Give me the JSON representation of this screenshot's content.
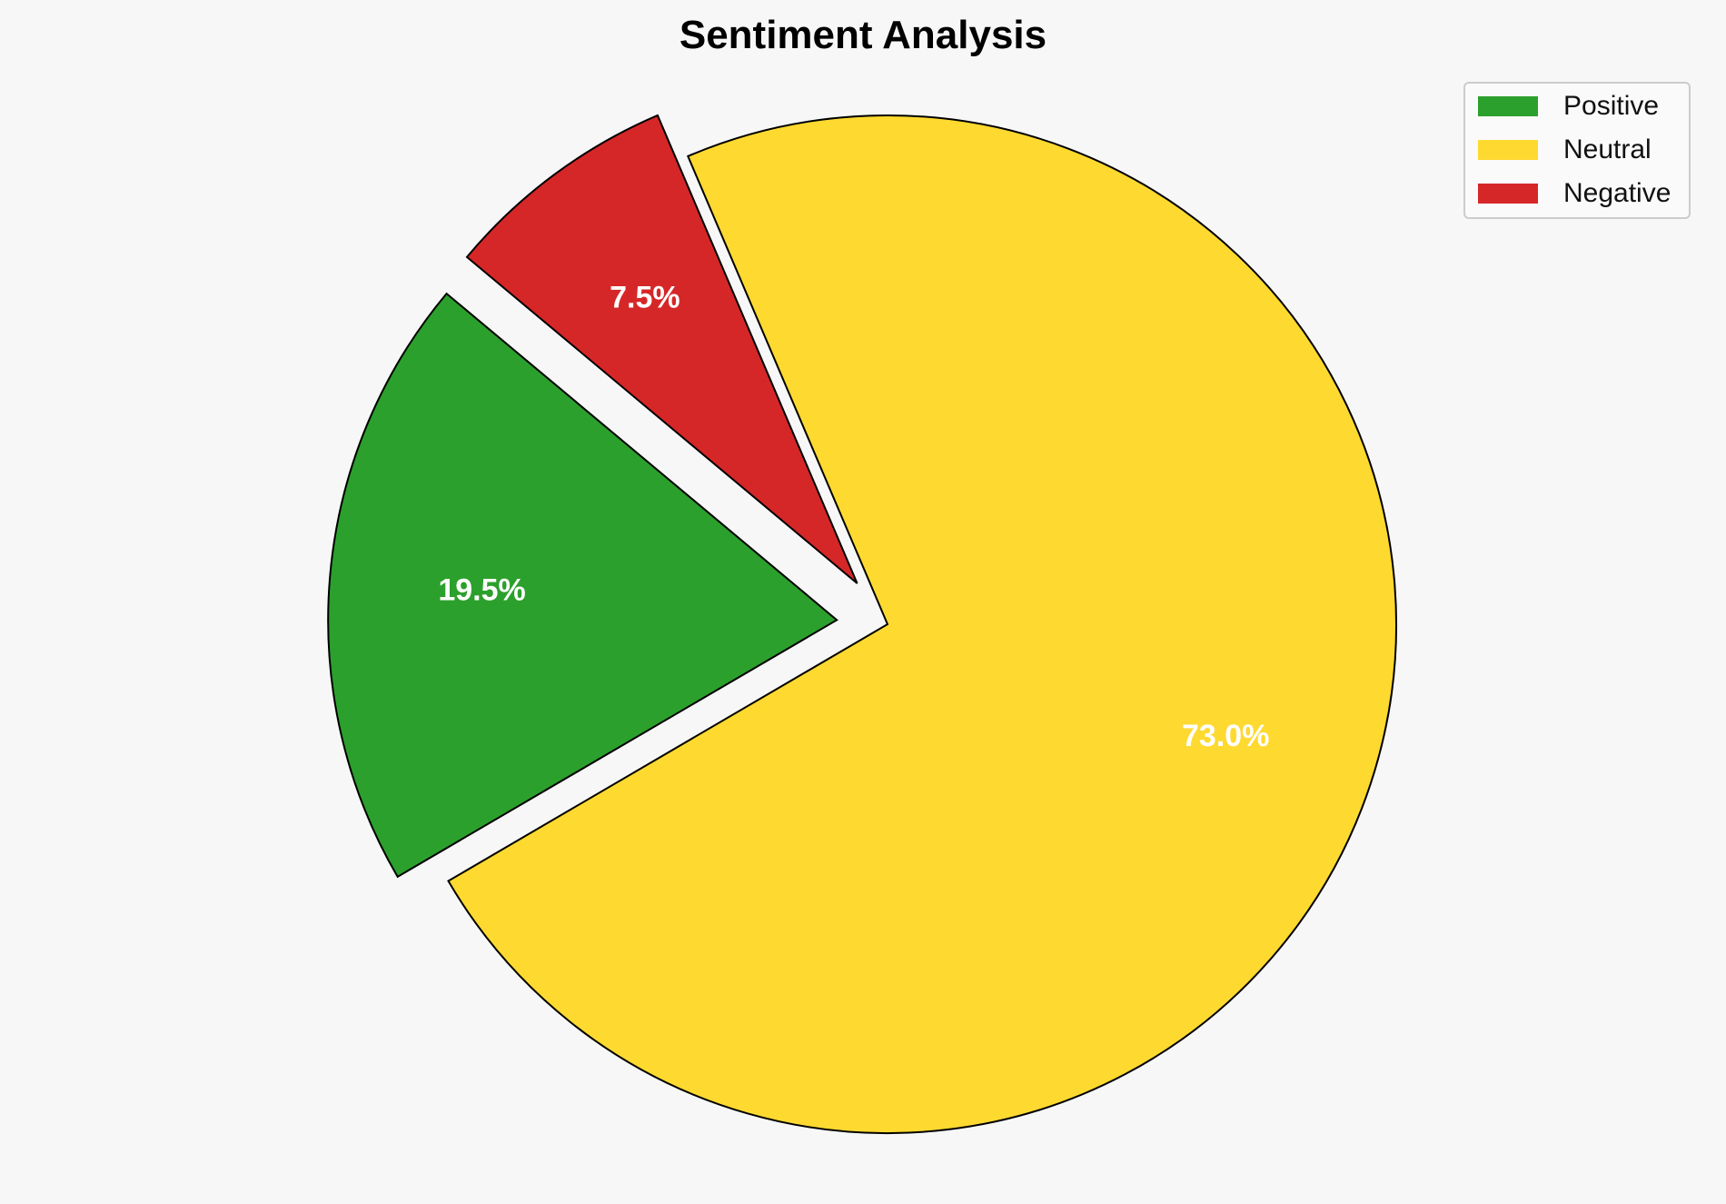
{
  "chart_data": {
    "type": "pie",
    "title": "Sentiment Analysis",
    "slices": [
      {
        "label": "Positive",
        "value": 19.5,
        "pct_label": "19.5%",
        "color": "#2ca02c",
        "exploded": true
      },
      {
        "label": "Negative",
        "value": 7.5,
        "pct_label": "7.5%",
        "color": "#d62728",
        "exploded": true
      },
      {
        "label": "Neutral",
        "value": 73.0,
        "pct_label": "73.0%",
        "color": "#fed930",
        "exploded": false
      }
    ],
    "legend": {
      "placement": "top-right",
      "entries": [
        {
          "label": "Positive",
          "color": "#2ca02c"
        },
        {
          "label": "Neutral",
          "color": "#fed930"
        },
        {
          "label": "Negative",
          "color": "#d62728"
        }
      ]
    },
    "background": "#f7f7f7"
  }
}
